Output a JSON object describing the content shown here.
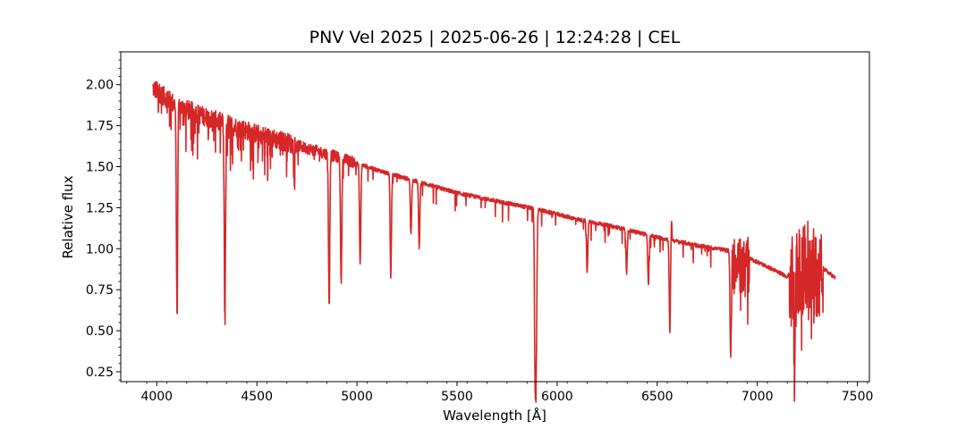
{
  "chart_data": {
    "type": "line",
    "title": "PNV Vel 2025 | 2025-06-26 | 12:24:28 | CEL",
    "xlabel": "Wavelength [Å]",
    "ylabel": "Relative flux",
    "xlim": [
      3820,
      7560
    ],
    "ylim": [
      0.19,
      2.2
    ],
    "x_ticks": [
      4000,
      4500,
      5000,
      5500,
      6000,
      6500,
      7000,
      7500
    ],
    "y_ticks": [
      0.25,
      0.5,
      0.75,
      1.0,
      1.25,
      1.5,
      1.75,
      2.0
    ],
    "grid": false,
    "line_color": "#d62728",
    "series": [
      {
        "continuum": [
          [
            3980,
            1.98
          ],
          [
            4100,
            1.87
          ],
          [
            4300,
            1.78
          ],
          [
            4500,
            1.7
          ],
          [
            4700,
            1.63
          ],
          [
            4900,
            1.56
          ],
          [
            5100,
            1.48
          ],
          [
            5300,
            1.41
          ],
          [
            5500,
            1.34
          ],
          [
            5700,
            1.29
          ],
          [
            5900,
            1.24
          ],
          [
            6100,
            1.18
          ],
          [
            6300,
            1.13
          ],
          [
            6500,
            1.07
          ],
          [
            6700,
            1.02
          ],
          [
            6850,
            0.99
          ],
          [
            7000,
            0.92
          ],
          [
            7150,
            0.83
          ],
          [
            7250,
            0.96
          ],
          [
            7390,
            0.82
          ]
        ],
        "absorption_lines": [
          [
            4101,
            0.62
          ],
          [
            4340,
            0.6
          ],
          [
            4861,
            0.64
          ],
          [
            4921,
            0.78
          ],
          [
            5016,
            0.9
          ],
          [
            5169,
            0.83
          ],
          [
            5270,
            1.1
          ],
          [
            5311,
            1.01
          ],
          [
            5890,
            0.28
          ],
          [
            5896,
            0.45
          ],
          [
            6150,
            0.86
          ],
          [
            6347,
            0.85
          ],
          [
            6456,
            0.78
          ],
          [
            6563,
            0.52
          ],
          [
            6867,
            0.33
          ],
          [
            7186,
            0.36
          ]
        ],
        "emission_features": [
          [
            6563,
            1.19
          ]
        ],
        "telluric_bands": [
          [
            6870,
            6960
          ],
          [
            7160,
            7330
          ]
        ]
      }
    ]
  }
}
